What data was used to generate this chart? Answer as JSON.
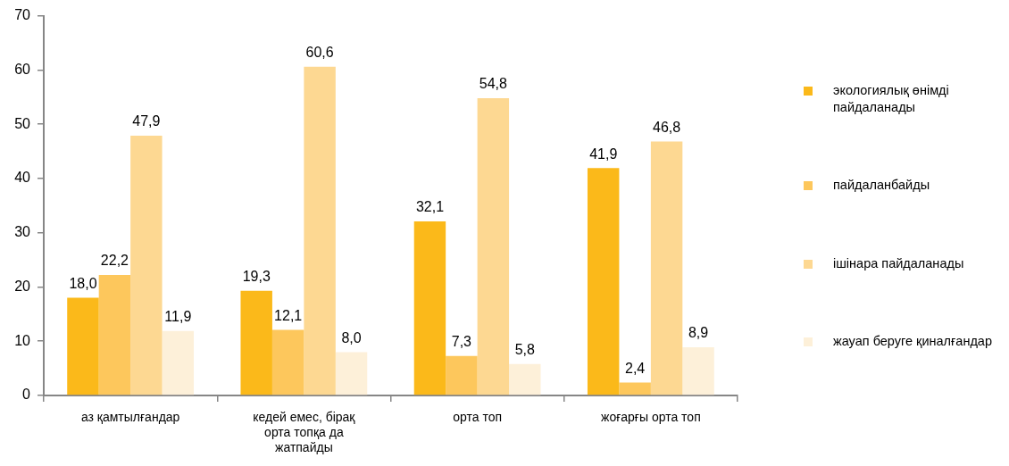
{
  "chart_data": {
    "type": "bar",
    "categories": [
      "аз қамтылғандар",
      "кедей емес, бірақ орта топқа да жатпайды",
      "орта топ",
      "жоғарғы орта топ"
    ],
    "series": [
      {
        "name": "экологиялық өнімді пайдаланады",
        "color": "#fbb91a",
        "values": [
          18.0,
          19.3,
          32.1,
          41.9
        ],
        "value_labels": [
          "18,0",
          "19,3",
          "32,1",
          "41,9"
        ]
      },
      {
        "name": "пайдаланбайды",
        "color": "#fdc75c",
        "values": [
          22.2,
          12.1,
          7.3,
          2.4
        ],
        "value_labels": [
          "22,2",
          "12,1",
          "7,3",
          "2,4"
        ]
      },
      {
        "name": "ішінара пайдаланады",
        "color": "#fdd892",
        "values": [
          47.9,
          60.6,
          54.8,
          46.8
        ],
        "value_labels": [
          "47,9",
          "60,6",
          "54,8",
          "46,8"
        ]
      },
      {
        "name": "жауап беруге қиналғандар",
        "color": "#fdf0d9",
        "values": [
          11.9,
          8.0,
          5.8,
          8.9
        ],
        "value_labels": [
          "11,9",
          "8,0",
          "5,8",
          "8,9"
        ]
      }
    ],
    "ylim": [
      0,
      70
    ],
    "yticks": [
      0,
      10,
      20,
      30,
      40,
      50,
      60,
      70
    ],
    "legend": "right",
    "grid": false
  }
}
